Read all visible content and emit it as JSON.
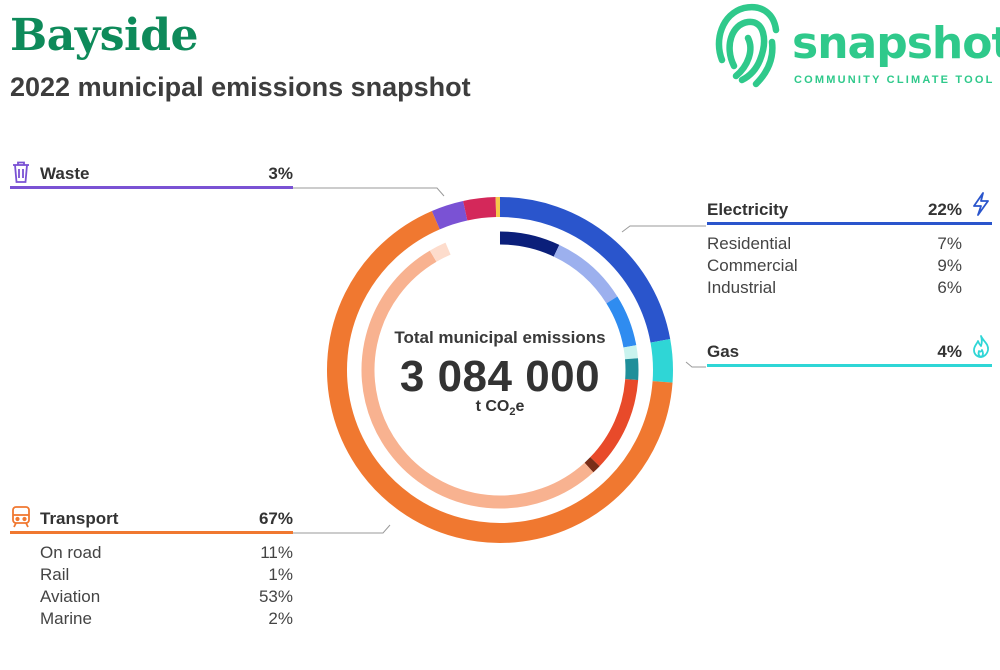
{
  "header": {
    "title": "Bayside",
    "subtitle": "2022 municipal emissions snapshot"
  },
  "logo": {
    "word": "snapshot",
    "tagline": "COMMUNITY CLIMATE TOOL",
    "color": "#2fc98b"
  },
  "center": {
    "label": "Total municipal emissions",
    "total": "3 084 000",
    "unit_main": "t CO",
    "unit_sub": "2",
    "unit_tail": "e"
  },
  "chart_data": {
    "type": "pie",
    "style": "donut",
    "sectors": [
      {
        "name": "Electricity",
        "percent_label": "22%",
        "value": 22,
        "color": "#2a55cc",
        "icon": "lightning-icon",
        "subsectors": [
          {
            "name": "Residential",
            "percent_label": "7%",
            "value": 7,
            "color": "#0b1f7a"
          },
          {
            "name": "Commercial",
            "percent_label": "9%",
            "value": 9,
            "color": "#9cb0ee"
          },
          {
            "name": "Industrial",
            "percent_label": "6%",
            "value": 6,
            "color": "#2f8cf0"
          }
        ]
      },
      {
        "name": "Gas",
        "percent_label": "4%",
        "value": 4,
        "color": "#2fd6d6",
        "icon": "flame-icon",
        "subsectors": [
          {
            "name": "",
            "value": 1.5,
            "color": "#c9f3ee"
          },
          {
            "name": "",
            "value": 2.5,
            "color": "#1f8f9a"
          }
        ]
      },
      {
        "name": "Transport",
        "percent_label": "67%",
        "value": 67,
        "color": "#f07830",
        "icon": "train-icon",
        "subsectors": [
          {
            "name": "On road",
            "percent_label": "11%",
            "value": 11,
            "color": "#e84a2a"
          },
          {
            "name": "Rail",
            "percent_label": "1%",
            "value": 1,
            "color": "#7a2e18"
          },
          {
            "name": "Aviation",
            "percent_label": "53%",
            "value": 53,
            "color": "#f8b290"
          },
          {
            "name": "Marine",
            "percent_label": "2%",
            "value": 2,
            "color": "#fddccc"
          }
        ]
      },
      {
        "name": "Waste",
        "percent_label": "3%",
        "value": 3,
        "color": "#7a52d4",
        "icon": "trash-icon",
        "subsectors": []
      },
      {
        "name": "",
        "value": 3,
        "color": "#d4285a",
        "subsectors": []
      },
      {
        "name": "",
        "value": 0.4,
        "color": "#f5c84a",
        "subsectors": []
      }
    ]
  }
}
